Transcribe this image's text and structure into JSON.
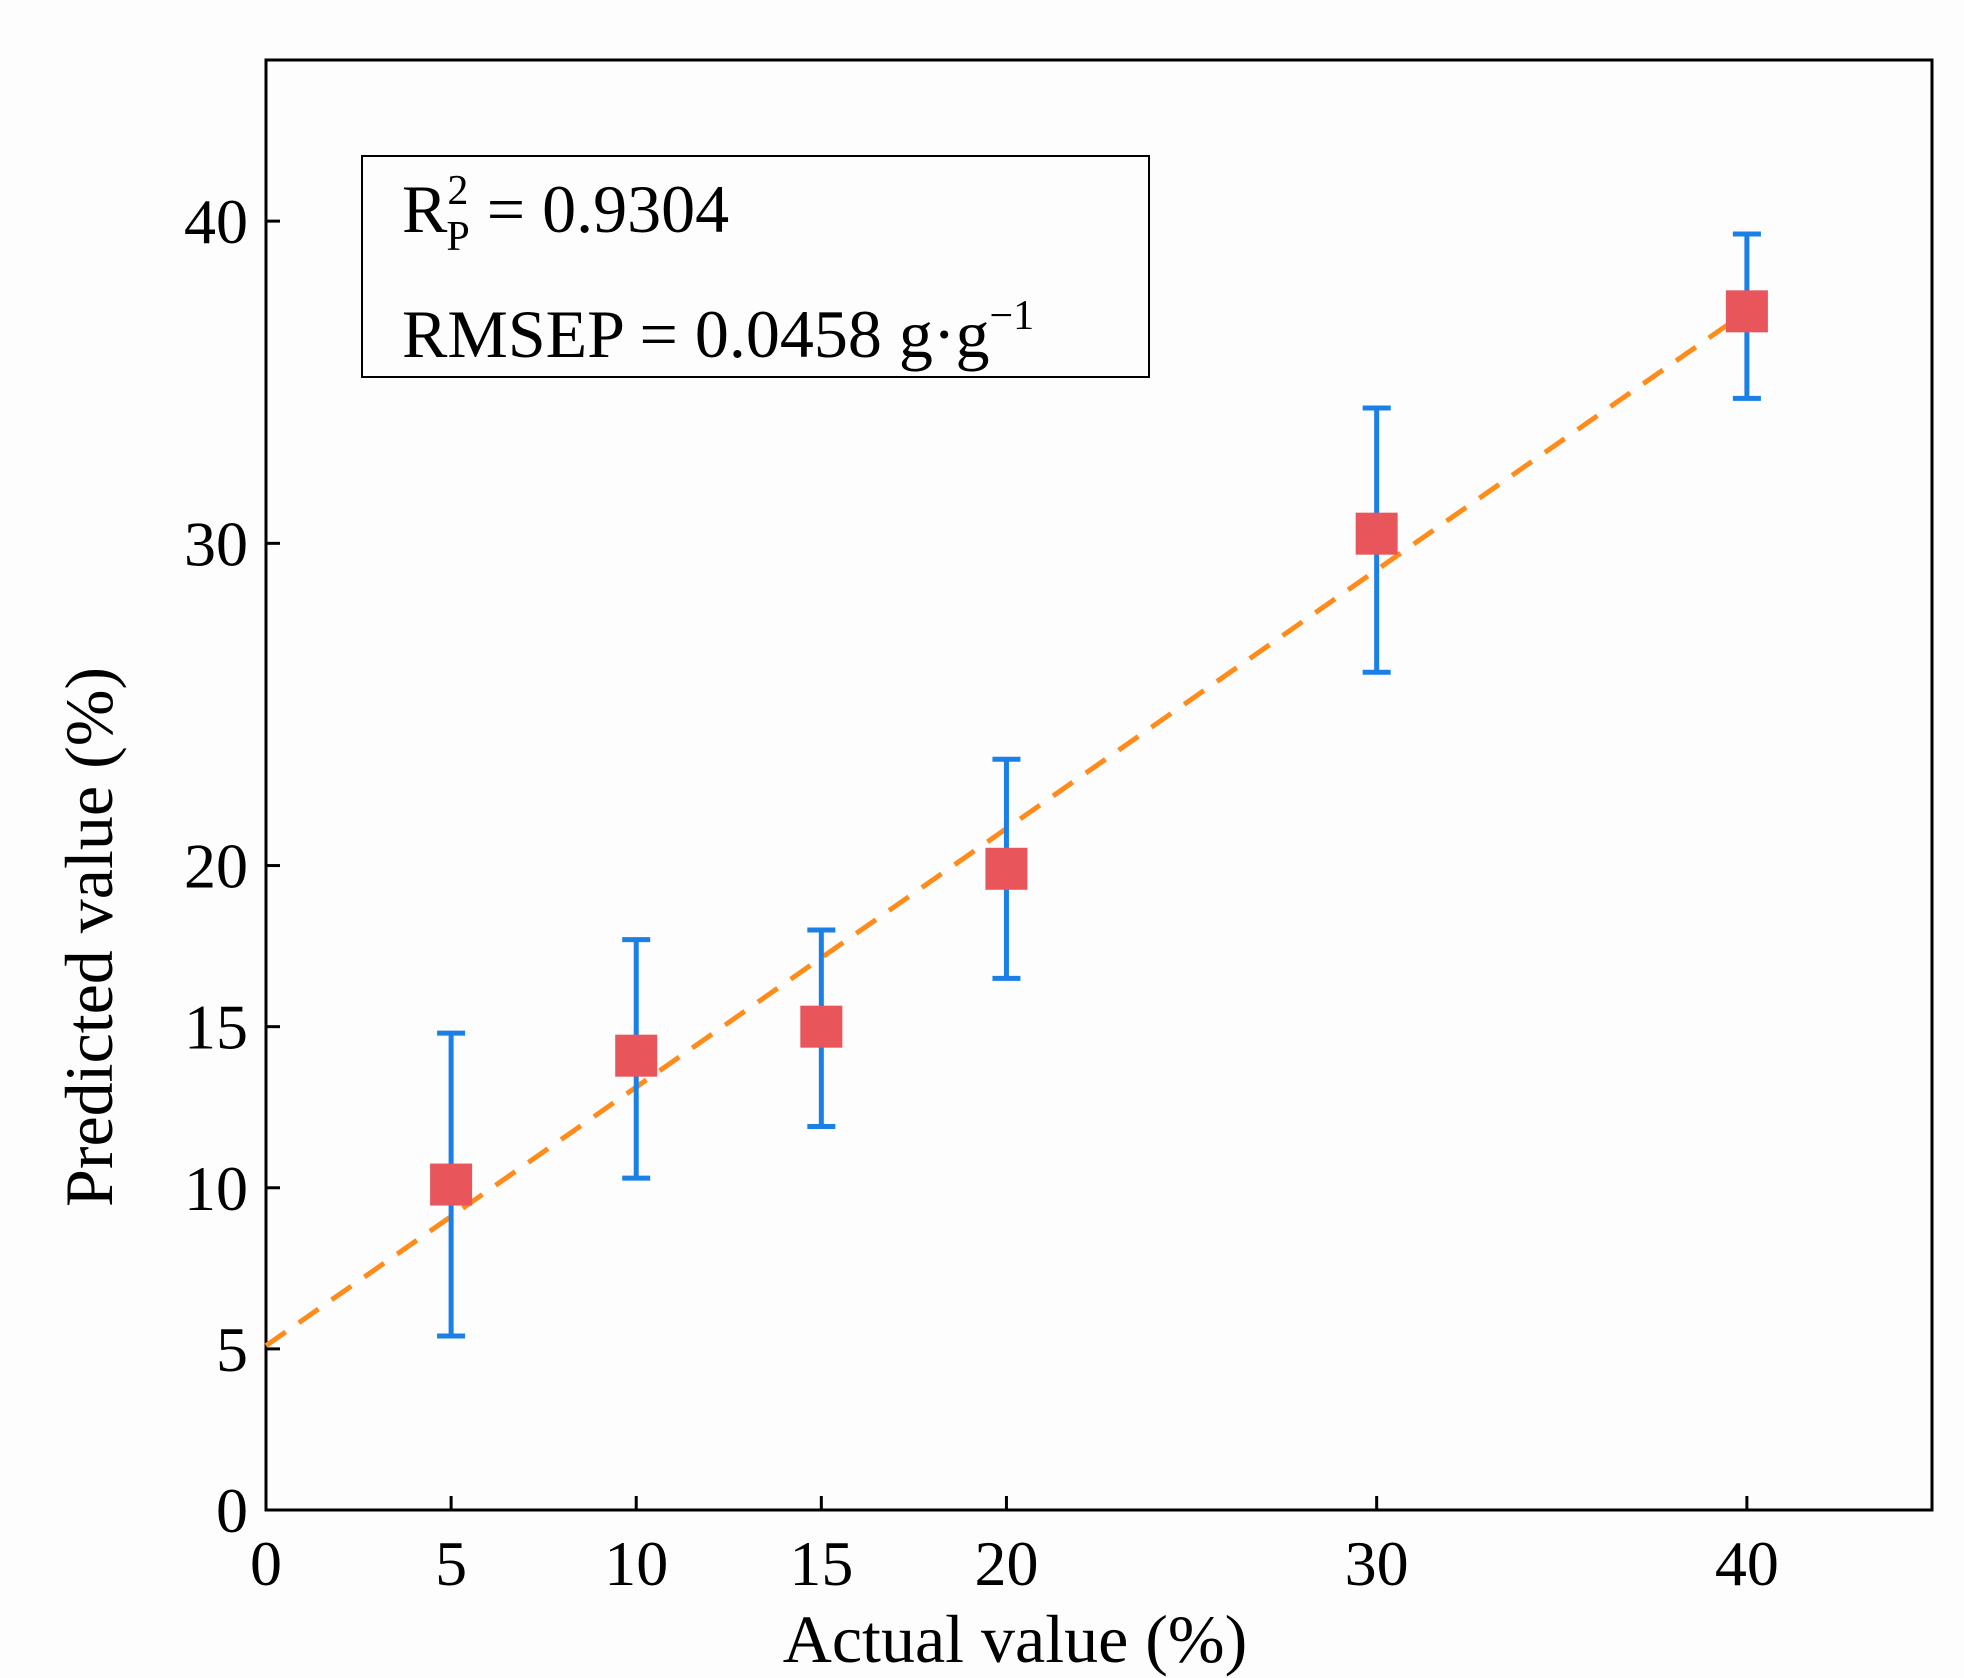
{
  "chart_data": {
    "type": "scatter",
    "title": "",
    "xlabel": "Actual value (%)",
    "ylabel": "Predicted value (%)",
    "xlim": [
      0,
      45
    ],
    "ylim": [
      0,
      45
    ],
    "x_ticks": [
      "0",
      "5",
      "10",
      "15",
      "20",
      "30",
      "40"
    ],
    "y_ticks": [
      "0",
      "5",
      "10",
      "15",
      "20",
      "30",
      "40"
    ],
    "grid": false,
    "series": [
      {
        "x": [
          5,
          10,
          15,
          20,
          30,
          40
        ],
        "y": [
          10.1,
          14.1,
          15.0,
          19.9,
          30.3,
          37.2
        ],
        "error_low": [
          5.4,
          10.3,
          11.9,
          16.5,
          26.0,
          34.5
        ],
        "error_high": [
          14.8,
          17.7,
          18.0,
          23.3,
          34.2,
          39.6
        ],
        "marker": "square",
        "color": "#e8555a",
        "error_color": "#1a80e6"
      }
    ],
    "fit_line": {
      "x": [
        0,
        40
      ],
      "y": [
        5.1,
        37.2
      ],
      "color": "#ff8c1a",
      "style": "dashed"
    },
    "annotation": {
      "r2_base": "R",
      "r2_sup": "2",
      "r2_sub": "P",
      "r2_value": " = 0.9304",
      "rmsep_text": "RMSEP = 0.0458 g·g",
      "rmsep_sup": "−1"
    }
  }
}
